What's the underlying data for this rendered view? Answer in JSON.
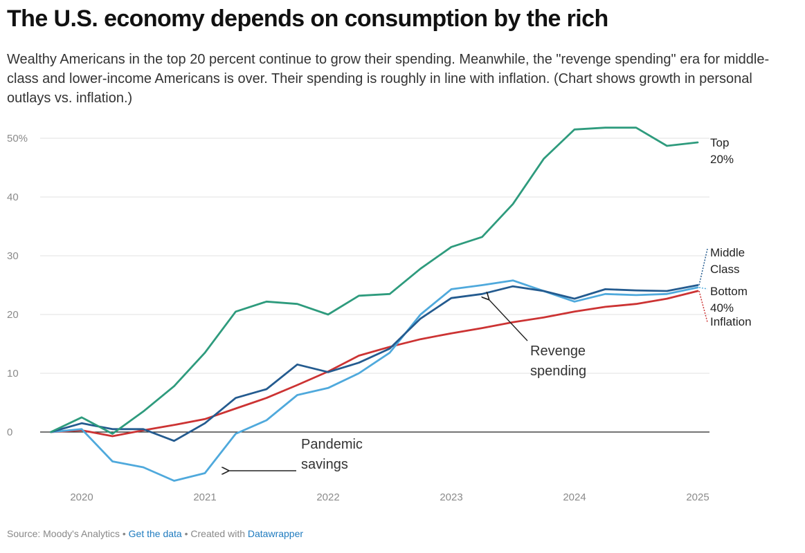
{
  "header": {
    "title": "The U.S. economy depends on consumption by the rich",
    "subtitle": "Wealthy Americans in the top 20 percent continue to grow their spending. Meanwhile, the \"revenge spending\" era for middle-class and lower-income Americans is over. Their spending is roughly in line with inflation. (Chart shows growth in personal outlays vs. inflation.)"
  },
  "footer": {
    "source": "Source: Moody's Analytics",
    "sep1": " • ",
    "get_data": "Get the data",
    "sep2": " • Created with ",
    "datawrapper": "Datawrapper"
  },
  "chart_data": {
    "type": "line",
    "x": [
      2019.75,
      2020.0,
      2020.25,
      2020.5,
      2020.75,
      2021.0,
      2021.25,
      2021.5,
      2021.75,
      2022.0,
      2022.25,
      2022.5,
      2022.75,
      2023.0,
      2023.25,
      2023.5,
      2023.75,
      2024.0,
      2024.25,
      2024.5,
      2024.75,
      2025.0
    ],
    "xticks": [
      2020,
      2021,
      2022,
      2023,
      2024,
      2025
    ],
    "xtick_labels": [
      "2020",
      "2021",
      "2022",
      "2023",
      "2024",
      "2025"
    ],
    "yticks": [
      0,
      10,
      20,
      30,
      40,
      50
    ],
    "ytick_labels": [
      "0",
      "10",
      "20",
      "30",
      "40",
      "50%"
    ],
    "xlim": [
      2019.6,
      2025.1
    ],
    "ylim": [
      -9,
      52
    ],
    "grid": "horizontal",
    "series": [
      {
        "name": "Top 20%",
        "color": "#2e9b7d",
        "values": [
          0,
          2.5,
          -0.3,
          3.5,
          7.8,
          13.5,
          20.5,
          22.2,
          21.8,
          20.0,
          23.2,
          23.5,
          27.8,
          31.5,
          33.2,
          38.8,
          46.5,
          51.5,
          51.8,
          51.8,
          48.7,
          49.3
        ]
      },
      {
        "name": "Middle Class",
        "color": "#245b8f",
        "values": [
          0,
          1.5,
          0.5,
          0.5,
          -1.5,
          1.5,
          5.8,
          7.3,
          11.5,
          10.2,
          11.8,
          14.2,
          19.3,
          22.8,
          23.5,
          24.8,
          24.0,
          22.7,
          24.3,
          24.1,
          24.0,
          25.0
        ]
      },
      {
        "name": "Bottom 40%",
        "color": "#4fa9dc",
        "values": [
          0,
          0.5,
          -5.0,
          -6.0,
          -8.3,
          -7.0,
          -0.3,
          2.0,
          6.3,
          7.5,
          10.0,
          13.5,
          20.0,
          24.3,
          25.0,
          25.8,
          24.0,
          22.2,
          23.5,
          23.3,
          23.5,
          24.6
        ]
      },
      {
        "name": "Inflation",
        "color": "#cc3333",
        "values": [
          0,
          0.3,
          -0.7,
          0.3,
          1.2,
          2.2,
          4.0,
          5.8,
          8.0,
          10.3,
          13.0,
          14.5,
          15.8,
          16.8,
          17.7,
          18.7,
          19.5,
          20.5,
          21.3,
          21.8,
          22.7,
          24.0
        ]
      }
    ],
    "series_labels": [
      {
        "line1": "Top",
        "line2": "20%",
        "y": 49.3,
        "color": "#2e9b7d"
      },
      {
        "line1": "Middle",
        "line2": "Class",
        "y": 25.0,
        "color": "#245b8f"
      },
      {
        "line1": "Bottom",
        "line2": "40%",
        "y": 24.6,
        "color": "#4fa9dc"
      },
      {
        "line1": "Inflation",
        "line2": "",
        "y": 24.0,
        "color": "#cc3333"
      }
    ],
    "annotations": [
      {
        "line1": "Pandemic",
        "line2": "savings",
        "x": 2021.8,
        "y": -3.0,
        "arrow_to_x": 2021.18,
        "arrow_to_y": -6.6
      },
      {
        "line1": "Revenge",
        "line2": "spending",
        "x": 2024.1,
        "y": 13.5,
        "arrow_to_x": 2023.3,
        "arrow_to_y": 22.4
      }
    ]
  }
}
